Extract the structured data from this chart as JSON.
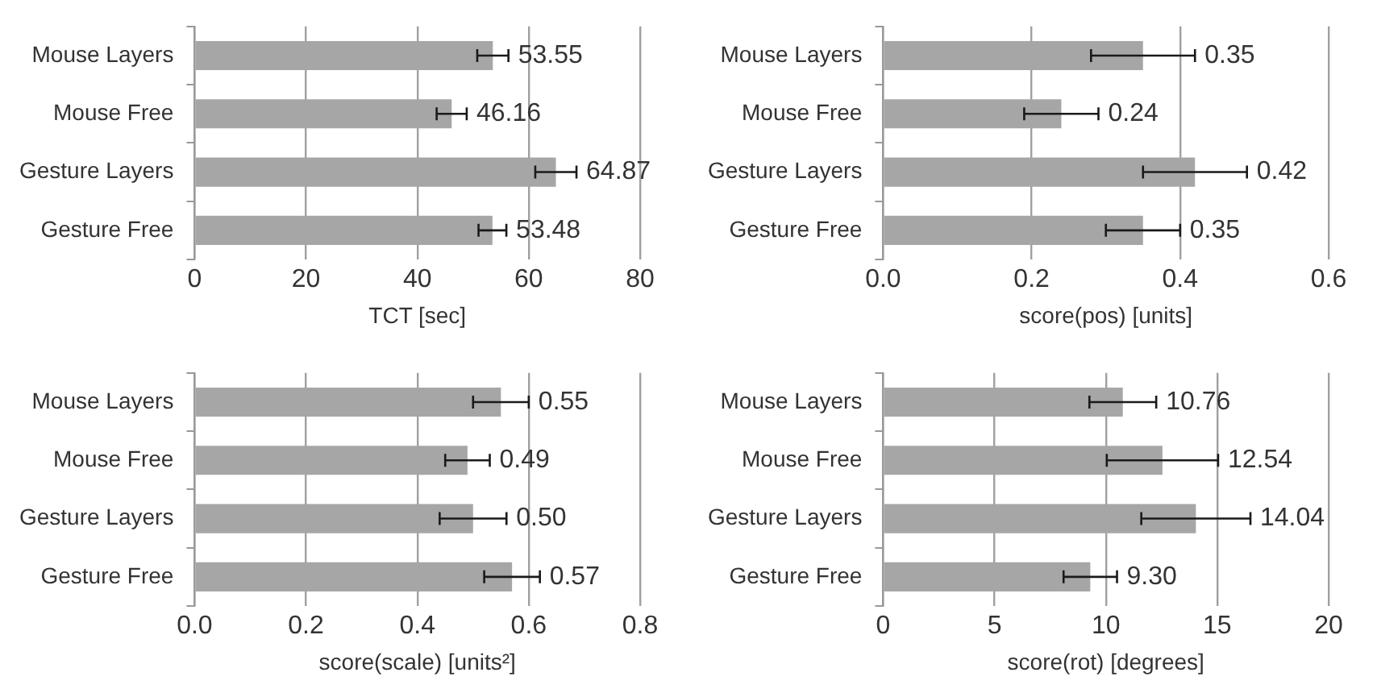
{
  "chart_data": [
    {
      "type": "bar",
      "orientation": "horizontal",
      "categories": [
        "Mouse Layers",
        "Mouse Free",
        "Gesture Layers",
        "Gesture Free"
      ],
      "values": [
        53.55,
        46.16,
        64.87,
        53.48
      ],
      "errors": [
        2.8,
        2.7,
        3.7,
        2.5
      ],
      "value_labels": [
        "53.55",
        "46.16",
        "64.87",
        "53.48"
      ],
      "color": "#a6a6a6",
      "xlabel": "TCT [sec]",
      "xlim": [
        0,
        80
      ],
      "xticks": [
        0,
        20,
        40,
        60,
        80
      ],
      "grid": "x",
      "legend": false
    },
    {
      "type": "bar",
      "orientation": "horizontal",
      "categories": [
        "Mouse Layers",
        "Mouse Free",
        "Gesture Layers",
        "Gesture Free"
      ],
      "values": [
        0.35,
        0.24,
        0.42,
        0.35
      ],
      "errors": [
        0.07,
        0.05,
        0.07,
        0.05
      ],
      "value_labels": [
        "0.35",
        "0.24",
        "0.42",
        "0.35"
      ],
      "color": "#a6a6a6",
      "xlabel": "score(pos) [units]",
      "xlim": [
        0,
        0.6
      ],
      "xticks": [
        {
          "value": 0,
          "label": "0.0"
        },
        {
          "value": 0.2,
          "label": "0.2"
        },
        {
          "value": 0.4,
          "label": "0.4"
        },
        {
          "value": 0.6,
          "label": "0.6"
        }
      ],
      "grid": "x",
      "legend": false
    },
    {
      "type": "bar",
      "orientation": "horizontal",
      "categories": [
        "Mouse Layers",
        "Mouse Free",
        "Gesture Layers",
        "Gesture Free"
      ],
      "values": [
        0.55,
        0.49,
        0.5,
        0.57
      ],
      "errors": [
        0.05,
        0.04,
        0.06,
        0.05
      ],
      "value_labels": [
        "0.55",
        "0.49",
        "0.50",
        "0.57"
      ],
      "color": "#a6a6a6",
      "xlabel": "score(scale) [units²]",
      "xlim": [
        0,
        0.8
      ],
      "xticks": [
        {
          "value": 0,
          "label": "0.0"
        },
        {
          "value": 0.2,
          "label": "0.2"
        },
        {
          "value": 0.4,
          "label": "0.4"
        },
        {
          "value": 0.6,
          "label": "0.6"
        },
        {
          "value": 0.8,
          "label": "0.8"
        }
      ],
      "grid": "x",
      "legend": false
    },
    {
      "type": "bar",
      "orientation": "horizontal",
      "categories": [
        "Mouse Layers",
        "Mouse Free",
        "Gesture Layers",
        "Gesture Free"
      ],
      "values": [
        10.76,
        12.54,
        14.04,
        9.3
      ],
      "errors": [
        1.5,
        2.5,
        2.45,
        1.2
      ],
      "value_labels": [
        "10.76",
        "12.54",
        "14.04",
        "9.30"
      ],
      "color": "#a6a6a6",
      "xlabel": "score(rot) [degrees]",
      "xlim": [
        0,
        20
      ],
      "xticks": [
        0,
        5,
        10,
        15,
        20
      ],
      "grid": "x",
      "legend": false
    }
  ]
}
